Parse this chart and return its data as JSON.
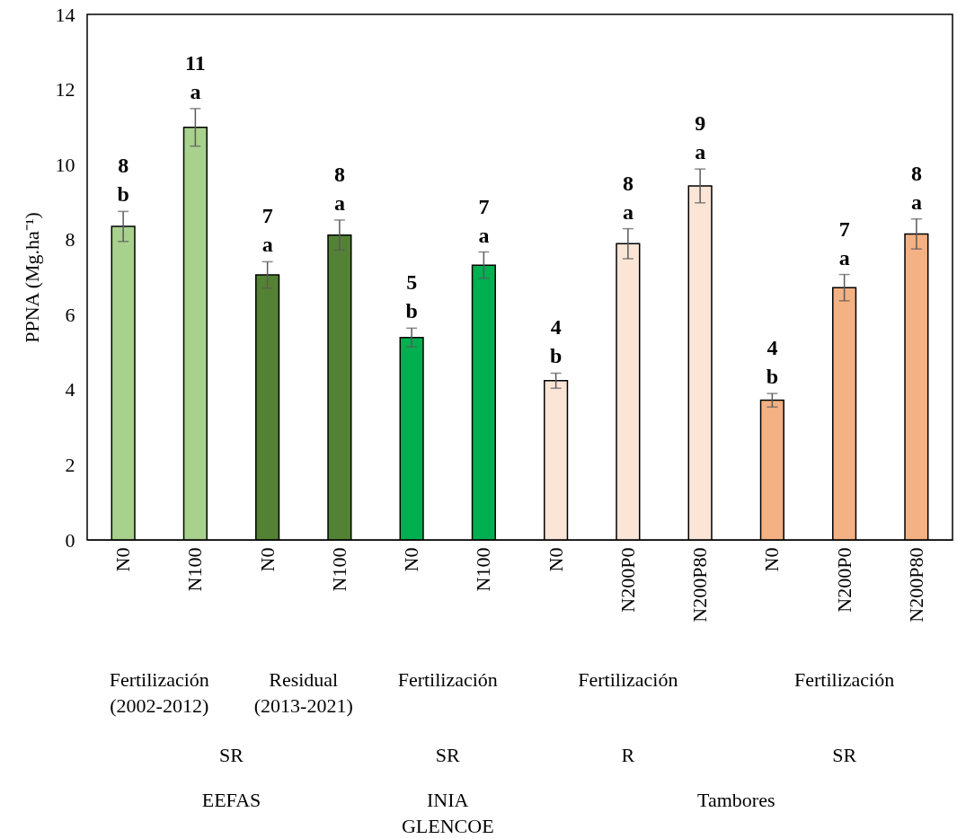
{
  "chart_data": {
    "type": "bar",
    "ylabel": "PPNA (Mg.ha⁻¹)",
    "categories": [
      "N0",
      "N100",
      "N0",
      "N100",
      "N0",
      "N100",
      "N0",
      "N200P0",
      "N200P80",
      "N0",
      "N200P0",
      "N200P80"
    ],
    "values": [
      8.35,
      10.99,
      7.06,
      8.12,
      5.39,
      7.32,
      4.24,
      7.89,
      9.43,
      3.72,
      6.72,
      8.15
    ],
    "colors": [
      "#a9d18e",
      "#a9d18e",
      "#548235",
      "#548235",
      "#00b050",
      "#00b050",
      "#fbe5d6",
      "#fbe5d6",
      "#fbe5d6",
      "#f4b183",
      "#f4b183",
      "#f4b183"
    ],
    "errors": [
      0.4,
      0.5,
      0.35,
      0.4,
      0.25,
      0.35,
      0.2,
      0.4,
      0.45,
      0.18,
      0.35,
      0.4
    ],
    "value_labels": [
      "8\nb",
      "11\na",
      "7\na",
      "8\na",
      "5\nb",
      "7\na",
      "4\nb",
      "8\na",
      "9\na",
      "4\nb",
      "7\na",
      "8\na"
    ],
    "ylim": [
      0,
      14
    ],
    "yticks": [
      0,
      2,
      4,
      6,
      8,
      10,
      12,
      14
    ],
    "grid": false,
    "annotations": [
      "Fertilización\n(2002-2012)",
      "Residual\n(2013-2021)",
      "Fertilización",
      "Fertilización",
      "Fertilización",
      "SR",
      "SR",
      "R",
      "SR",
      "EEFAS",
      "INIA\nGLENCOE",
      "Tambores"
    ]
  }
}
